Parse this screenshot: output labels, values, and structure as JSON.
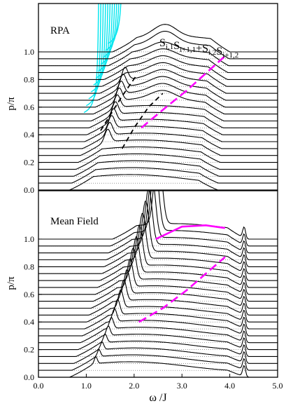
{
  "chart_data": [
    {
      "type": "line",
      "panel_label": "RPA",
      "annotation": {
        "base": "S",
        "parts": [
          {
            "t": "S",
            "s": "i,1"
          },
          {
            "t": "S",
            "s": "i+1,1"
          },
          {
            "t": "+S",
            "s": "i,2"
          },
          {
            "t": "S",
            "s": "i+1,2"
          }
        ]
      },
      "ylabel": "p/π",
      "xlim": [
        0,
        5
      ],
      "ylim": [
        0,
        1.35
      ],
      "yticks": [
        "0.0",
        "0.2",
        "0.4",
        "0.6",
        "0.8",
        "1.0"
      ],
      "num_curves": 21,
      "p_range": [
        0.0,
        1.0
      ],
      "series": [
        {
          "style": "solid",
          "color": "#000000",
          "description_hidden": true
        },
        {
          "style": "solid",
          "color": "#00e5ee"
        },
        {
          "style": "dashed",
          "color": "#000000",
          "x": [
            1.3,
            1.55,
            1.75,
            2.05
          ],
          "y": [
            0.43,
            0.57,
            0.68,
            0.83
          ]
        },
        {
          "style": "dashed",
          "color": "#000000",
          "x": [
            1.75,
            2.0,
            2.3,
            2.6
          ],
          "y": [
            0.3,
            0.45,
            0.6,
            0.7
          ]
        },
        {
          "style": "dashed",
          "color": "#ff00ff",
          "x": [
            2.15,
            2.6,
            3.1,
            3.55,
            3.9
          ],
          "y": [
            0.45,
            0.58,
            0.72,
            0.86,
            0.97
          ]
        }
      ]
    },
    {
      "type": "line",
      "panel_label": "Mean Field",
      "xlabel": "ω /J",
      "ylabel": "p/π",
      "xlim": [
        0,
        5
      ],
      "ylim": [
        0,
        1.35
      ],
      "xticks": [
        "0.0",
        "1.0",
        "2.0",
        "3.0",
        "4.0",
        "5.0"
      ],
      "yticks": [
        "0.0",
        "0.2",
        "0.4",
        "0.6",
        "0.8",
        "1.0"
      ],
      "num_curves": 21,
      "p_range": [
        0.0,
        1.0
      ],
      "series": [
        {
          "style": "solid",
          "color": "#000000"
        },
        {
          "style": "solid",
          "color": "#ff00ff",
          "x": [
            2.45,
            3.0,
            3.5,
            3.9
          ],
          "y": [
            1.0,
            1.09,
            1.1,
            1.08
          ]
        },
        {
          "style": "dashed",
          "color": "#ff00ff",
          "x": [
            2.1,
            2.6,
            3.1,
            3.5,
            3.9
          ],
          "y": [
            0.4,
            0.5,
            0.63,
            0.75,
            0.87
          ]
        }
      ]
    }
  ]
}
